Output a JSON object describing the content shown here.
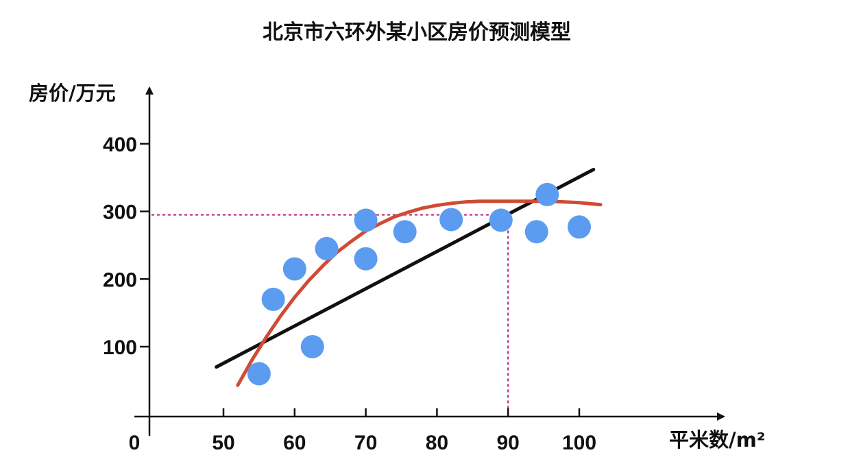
{
  "chart_data": {
    "type": "scatter",
    "title": "北京市六环外某小区房价预测模型",
    "xlabel": "平米数/m²",
    "ylabel": "房价/万元",
    "origin_label": "0",
    "x_ticks": [
      50,
      60,
      70,
      80,
      90,
      100
    ],
    "y_ticks": [
      100,
      200,
      300,
      400
    ],
    "xlim": [
      48,
      120
    ],
    "ylim": [
      -10,
      480
    ],
    "points": [
      {
        "x": 55,
        "y": 60
      },
      {
        "x": 57,
        "y": 170
      },
      {
        "x": 60,
        "y": 215
      },
      {
        "x": 62.5,
        "y": 100
      },
      {
        "x": 64.5,
        "y": 245
      },
      {
        "x": 70,
        "y": 287
      },
      {
        "x": 70,
        "y": 230
      },
      {
        "x": 75.5,
        "y": 270
      },
      {
        "x": 82,
        "y": 288
      },
      {
        "x": 89,
        "y": 287
      },
      {
        "x": 94,
        "y": 270
      },
      {
        "x": 95.5,
        "y": 325
      },
      {
        "x": 100,
        "y": 277
      }
    ],
    "linear_fit": {
      "x": [
        49,
        102
      ],
      "y": [
        70,
        362
      ]
    },
    "curve_fit": {
      "x": [
        52,
        54,
        56,
        58,
        60,
        62,
        64,
        66,
        68,
        70,
        72,
        74,
        76,
        78,
        80,
        82,
        84,
        86,
        88,
        90,
        92,
        94,
        96,
        98,
        100,
        102,
        103
      ],
      "y": [
        43,
        80,
        114,
        145,
        173,
        198,
        220,
        240,
        256,
        271,
        282,
        292,
        299,
        305,
        309,
        312,
        314,
        315,
        315,
        315,
        315,
        315,
        315,
        314,
        313,
        311,
        310
      ]
    },
    "reference_line": {
      "x": 90,
      "y": 295
    },
    "colors": {
      "points": "#5b9cf0",
      "linear_fit": "#111111",
      "curve_fit": "#d04a35",
      "reference": "#c2418a",
      "axis": "#111111"
    }
  }
}
